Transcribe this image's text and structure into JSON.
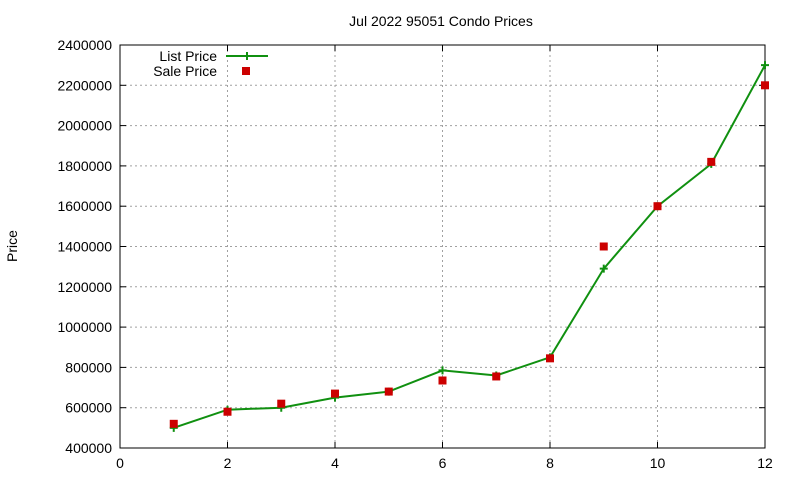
{
  "chart_data": {
    "type": "line",
    "title": "Jul 2022 95051 Condo Prices",
    "xlabel": "",
    "ylabel": "Price",
    "xlim": [
      0,
      12
    ],
    "ylim": [
      400000,
      2400000
    ],
    "xticks": [
      "0",
      "2",
      "4",
      "6",
      "8",
      "10",
      "12"
    ],
    "yticks": [
      "400000",
      "600000",
      "800000",
      "1000000",
      "1200000",
      "1400000",
      "1600000",
      "1800000",
      "2000000",
      "2200000",
      "2400000"
    ],
    "grid": true,
    "legend_position": "top-left",
    "series": [
      {
        "name": "List Price",
        "style": "line-with-plus-markers",
        "color": "#109010",
        "x": [
          1,
          2,
          3,
          4,
          5,
          6,
          7,
          8,
          9,
          10,
          11,
          12
        ],
        "values": [
          500000,
          590000,
          600000,
          650000,
          680000,
          785000,
          760000,
          850000,
          1290000,
          1600000,
          1810000,
          2300000
        ]
      },
      {
        "name": "Sale Price",
        "style": "square-markers",
        "color": "#cc0000",
        "x": [
          1,
          2,
          3,
          4,
          5,
          6,
          7,
          8,
          9,
          10,
          11,
          12
        ],
        "values": [
          520000,
          580000,
          620000,
          670000,
          680000,
          735000,
          755000,
          845000,
          1400000,
          1600000,
          1820000,
          2200000
        ]
      }
    ]
  }
}
